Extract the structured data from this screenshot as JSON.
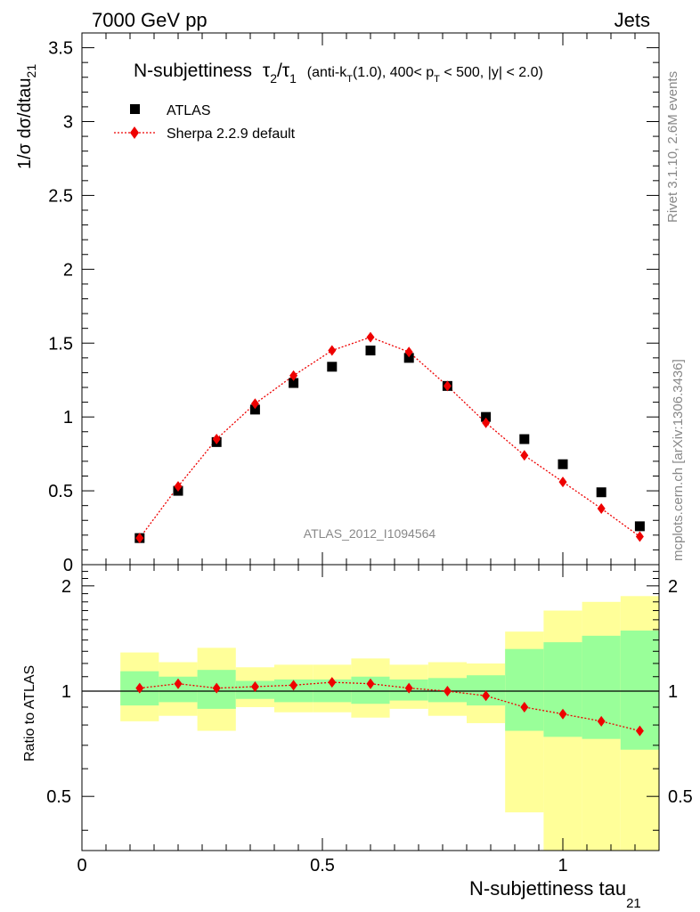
{
  "header": {
    "left": "7000 GeV pp",
    "right": "Jets"
  },
  "side": {
    "rivet": "Rivet 3.1.10,  2.6M events",
    "mcplots": "mcplots.cern.ch [arXiv:1306.3436]"
  },
  "analysis_id": "ATLAS_2012_I1094564",
  "title": {
    "main": "N-subjettiness",
    "tau": "τ",
    "sub2": "2",
    "slash": "/",
    "sub1": "1",
    "cond_a": "(anti-k",
    "cond_sub_t": "T",
    "cond_b": "(1.0), 400< p",
    "cond_sub_t2": "T",
    "cond_c": " < 500, |y| < 2.0)"
  },
  "axes": {
    "ylabel_main": "1/σ dσ/dtau",
    "ylabel_sub": "21",
    "xlabel_main": "N-subjettiness tau",
    "xlabel_sub": "21",
    "ratio_ylabel": "Ratio to ATLAS"
  },
  "colors": {
    "atlas": "#000000",
    "sherpa": "#ee0000",
    "band_green": "#99ff99",
    "band_yellow": "#ffff99"
  },
  "chart_data": [
    {
      "type": "scatter",
      "title": "N-subjettiness τ2/τ1 (anti-kT(1.0), 400< pT < 500, |y| < 2.0)",
      "xlim": [
        0,
        1.2
      ],
      "ylim": [
        0,
        3.6
      ],
      "yticks": [
        {
          "v": 0.5,
          "label": "0.5"
        },
        {
          "v": 1,
          "label": "1"
        },
        {
          "v": 1.5,
          "label": "1.5"
        },
        {
          "v": 2,
          "label": "2"
        },
        {
          "v": 2.5,
          "label": "2.5"
        },
        {
          "v": 3,
          "label": "3"
        },
        {
          "v": 3.5,
          "label": "3.5"
        }
      ],
      "ytick_zero_label": "0",
      "legend_position": "top-left",
      "series": [
        {
          "name": "ATLAS",
          "x": [
            0.12,
            0.2,
            0.28,
            0.36,
            0.44,
            0.52,
            0.6,
            0.68,
            0.76,
            0.84,
            0.92,
            1.0,
            1.08,
            1.16
          ],
          "values": [
            0.18,
            0.5,
            0.83,
            1.05,
            1.23,
            1.34,
            1.45,
            1.4,
            1.21,
            1.0,
            0.85,
            0.68,
            0.49,
            0.26
          ]
        },
        {
          "name": "Sherpa 2.2.9 default",
          "x": [
            0.12,
            0.2,
            0.28,
            0.36,
            0.44,
            0.52,
            0.6,
            0.68,
            0.76,
            0.84,
            0.92,
            1.0,
            1.08,
            1.16
          ],
          "values": [
            0.18,
            0.53,
            0.85,
            1.09,
            1.28,
            1.45,
            1.54,
            1.44,
            1.21,
            0.96,
            0.74,
            0.56,
            0.38,
            0.19
          ]
        }
      ]
    },
    {
      "type": "line",
      "ylabel": "Ratio to ATLAS",
      "xlim": [
        0,
        1.2
      ],
      "ylim": [
        0.35,
        2.3
      ],
      "yticks": [
        {
          "v": 0.5,
          "label": "0.5"
        },
        {
          "v": 1,
          "label": "1"
        },
        {
          "v": 2,
          "label": "2"
        }
      ],
      "xticks": [
        {
          "v": 0,
          "label": "0"
        },
        {
          "v": 0.5,
          "label": "0.5"
        },
        {
          "v": 1,
          "label": "1"
        }
      ],
      "bins": [
        {
          "lo": 0.08,
          "hi": 0.16,
          "g_lo": 0.91,
          "g_hi": 1.14,
          "y_lo": 0.82,
          "y_hi": 1.29
        },
        {
          "lo": 0.16,
          "hi": 0.24,
          "g_lo": 0.93,
          "g_hi": 1.1,
          "y_lo": 0.85,
          "y_hi": 1.21
        },
        {
          "lo": 0.24,
          "hi": 0.32,
          "g_lo": 0.89,
          "g_hi": 1.15,
          "y_lo": 0.77,
          "y_hi": 1.33
        },
        {
          "lo": 0.32,
          "hi": 0.4,
          "g_lo": 0.95,
          "g_hi": 1.07,
          "y_lo": 0.9,
          "y_hi": 1.17
        },
        {
          "lo": 0.4,
          "hi": 0.48,
          "g_lo": 0.93,
          "g_hi": 1.08,
          "y_lo": 0.87,
          "y_hi": 1.19
        },
        {
          "lo": 0.48,
          "hi": 0.56,
          "g_lo": 0.93,
          "g_hi": 1.08,
          "y_lo": 0.87,
          "y_hi": 1.19
        },
        {
          "lo": 0.56,
          "hi": 0.64,
          "g_lo": 0.92,
          "g_hi": 1.1,
          "y_lo": 0.84,
          "y_hi": 1.24
        },
        {
          "lo": 0.64,
          "hi": 0.72,
          "g_lo": 0.94,
          "g_hi": 1.08,
          "y_lo": 0.89,
          "y_hi": 1.19
        },
        {
          "lo": 0.72,
          "hi": 0.8,
          "g_lo": 0.93,
          "g_hi": 1.09,
          "y_lo": 0.85,
          "y_hi": 1.21
        },
        {
          "lo": 0.8,
          "hi": 0.88,
          "g_lo": 0.91,
          "g_hi": 1.11,
          "y_lo": 0.81,
          "y_hi": 1.2
        },
        {
          "lo": 0.88,
          "hi": 0.96,
          "g_lo": 0.77,
          "g_hi": 1.32,
          "y_lo": 0.45,
          "y_hi": 1.48
        },
        {
          "lo": 0.96,
          "hi": 1.04,
          "g_lo": 0.74,
          "g_hi": 1.38,
          "y_lo": 0.34,
          "y_hi": 1.7
        },
        {
          "lo": 1.04,
          "hi": 1.12,
          "g_lo": 0.73,
          "g_hi": 1.44,
          "y_lo": 0.34,
          "y_hi": 1.8
        },
        {
          "lo": 1.12,
          "hi": 1.2,
          "g_lo": 0.68,
          "g_hi": 1.49,
          "y_lo": 0.34,
          "y_hi": 1.87
        }
      ],
      "series": [
        {
          "name": "Sherpa 2.2.9 default",
          "x": [
            0.12,
            0.2,
            0.28,
            0.36,
            0.44,
            0.52,
            0.6,
            0.68,
            0.76,
            0.84,
            0.92,
            1.0,
            1.08,
            1.16
          ],
          "values": [
            1.02,
            1.05,
            1.02,
            1.03,
            1.04,
            1.06,
            1.05,
            1.02,
            1.0,
            0.97,
            0.9,
            0.86,
            0.82,
            0.77
          ]
        }
      ]
    }
  ]
}
